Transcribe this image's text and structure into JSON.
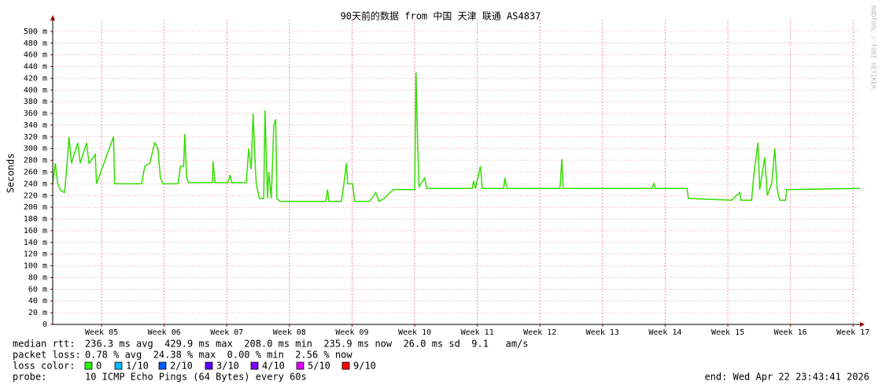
{
  "chart_data": {
    "type": "line",
    "title": "90天前的数据 from 中国 天津 联通 AS4837",
    "y_label": "Seconds",
    "watermark": "RRDTOOL / TOBI OETIKER",
    "ylim": [
      0,
      0.52
    ],
    "yticks": [
      0,
      {
        "value": 0.02,
        "label": "20 m"
      },
      {
        "value": 0.04,
        "label": "40 m"
      },
      {
        "value": 0.06,
        "label": "60 m"
      },
      {
        "value": 0.08,
        "label": "80 m"
      },
      {
        "value": 0.1,
        "label": "100 m"
      },
      {
        "value": 0.12,
        "label": "120 m"
      },
      {
        "value": 0.14,
        "label": "140 m"
      },
      {
        "value": 0.16,
        "label": "160 m"
      },
      {
        "value": 0.18,
        "label": "180 m"
      },
      {
        "value": 0.2,
        "label": "200 m"
      },
      {
        "value": 0.22,
        "label": "220 m"
      },
      {
        "value": 0.24,
        "label": "240 m"
      },
      {
        "value": 0.26,
        "label": "260 m"
      },
      {
        "value": 0.28,
        "label": "280 m"
      },
      {
        "value": 0.3,
        "label": "300 m"
      },
      {
        "value": 0.32,
        "label": "320 m"
      },
      {
        "value": 0.34,
        "label": "340 m"
      },
      {
        "value": 0.36,
        "label": "360 m"
      },
      {
        "value": 0.38,
        "label": "380 m"
      },
      {
        "value": 0.4,
        "label": "400 m"
      },
      {
        "value": 0.42,
        "label": "420 m"
      },
      {
        "value": 0.44,
        "label": "440 m"
      },
      {
        "value": 0.46,
        "label": "460 m"
      },
      {
        "value": 0.48,
        "label": "480 m"
      },
      {
        "value": 0.5,
        "label": "500 m"
      }
    ],
    "xlim": [
      4.22,
      17.11
    ],
    "xticks": [
      {
        "value": 5,
        "label": "Week 05"
      },
      {
        "value": 6,
        "label": "Week 06"
      },
      {
        "value": 7,
        "label": "Week 07"
      },
      {
        "value": 8,
        "label": "Week 08"
      },
      {
        "value": 9,
        "label": "Week 09"
      },
      {
        "value": 10,
        "label": "Week 10"
      },
      {
        "value": 11,
        "label": "Week 11"
      },
      {
        "value": 12,
        "label": "Week 12"
      },
      {
        "value": 13,
        "label": "Week 13"
      },
      {
        "value": 14,
        "label": "Week 14"
      },
      {
        "value": 15,
        "label": "Week 15"
      },
      {
        "value": 16,
        "label": "Week 16"
      },
      {
        "value": 17,
        "label": "Week 17"
      }
    ],
    "grid": true,
    "grid_color": "#e08080",
    "x": [
      4.22,
      4.26,
      4.3,
      4.35,
      4.41,
      4.45,
      4.48,
      4.52,
      4.62,
      4.66,
      4.76,
      4.8,
      4.9,
      4.92,
      5.19,
      5.21,
      5.64,
      5.69,
      5.77,
      5.85,
      5.9,
      5.94,
      5.98,
      6.22,
      6.26,
      6.31,
      6.33,
      6.36,
      6.39,
      6.77,
      6.78,
      6.81,
      7.02,
      7.05,
      7.08,
      7.31,
      7.35,
      7.39,
      7.42,
      7.45,
      7.47,
      7.52,
      7.59,
      7.61,
      7.65,
      7.67,
      7.71,
      7.75,
      7.78,
      7.8,
      7.85,
      8.58,
      8.61,
      8.63,
      8.83,
      8.87,
      8.91,
      8.93,
      9.01,
      9.04,
      9.28,
      9.38,
      9.43,
      9.51,
      9.61,
      9.66,
      10.0,
      10.02,
      10.05,
      10.07,
      10.16,
      10.19,
      10.92,
      10.94,
      10.97,
      11.05,
      11.08,
      11.42,
      11.44,
      11.47,
      12.32,
      12.35,
      12.37,
      12.93,
      13.79,
      13.82,
      13.84,
      14.35,
      14.37,
      15.06,
      15.19,
      15.21,
      15.38,
      15.41,
      15.48,
      15.51,
      15.59,
      15.63,
      15.7,
      15.75,
      15.79,
      15.83,
      15.92,
      15.94,
      17.11
    ],
    "series": [
      {
        "color": "#33dd00",
        "values": [
          0.24,
          0.275,
          0.24,
          0.228,
          0.225,
          0.275,
          0.32,
          0.275,
          0.31,
          0.275,
          0.31,
          0.275,
          0.29,
          0.24,
          0.32,
          0.24,
          0.24,
          0.27,
          0.275,
          0.31,
          0.3,
          0.25,
          0.24,
          0.24,
          0.27,
          0.27,
          0.325,
          0.25,
          0.242,
          0.242,
          0.278,
          0.242,
          0.242,
          0.255,
          0.242,
          0.242,
          0.3,
          0.265,
          0.36,
          0.28,
          0.24,
          0.215,
          0.215,
          0.365,
          0.215,
          0.26,
          0.215,
          0.34,
          0.35,
          0.215,
          0.21,
          0.21,
          0.23,
          0.21,
          0.21,
          0.24,
          0.275,
          0.24,
          0.24,
          0.21,
          0.21,
          0.225,
          0.21,
          0.215,
          0.225,
          0.23,
          0.23,
          0.43,
          0.3,
          0.235,
          0.25,
          0.232,
          0.232,
          0.245,
          0.232,
          0.27,
          0.232,
          0.232,
          0.25,
          0.232,
          0.232,
          0.282,
          0.232,
          0.232,
          0.232,
          0.24,
          0.232,
          0.232,
          0.215,
          0.212,
          0.225,
          0.212,
          0.212,
          0.25,
          0.31,
          0.23,
          0.285,
          0.22,
          0.24,
          0.3,
          0.23,
          0.212,
          0.212,
          0.23,
          0.232
        ]
      }
    ],
    "stats": [
      {
        "label": "median rtt:",
        "text": "236.3 ms avg  429.9 ms max  208.0 ms min  235.9 ms now  26.0 ms sd  9.1   am/s"
      },
      {
        "label": "packet loss:",
        "text": "0.78 % avg  24.38 % max  0.00 % min  2.56 % now"
      }
    ],
    "loss_color_label": "loss color:",
    "loss_colors": [
      {
        "label": "0",
        "color": "#26ff00"
      },
      {
        "label": "1/10",
        "color": "#00b8ff"
      },
      {
        "label": "2/10",
        "color": "#0059ff"
      },
      {
        "label": "3/10",
        "color": "#5e00ff"
      },
      {
        "label": "4/10",
        "color": "#7e00ff"
      },
      {
        "label": "5/10",
        "color": "#dd00ff"
      },
      {
        "label": "9/10",
        "color": "#ff0000"
      }
    ],
    "probe_label": "probe:",
    "probe": "10 ICMP Echo Pings (64 Bytes) every 60s",
    "end": "end: Wed Apr 22 23:43:41 2026"
  }
}
